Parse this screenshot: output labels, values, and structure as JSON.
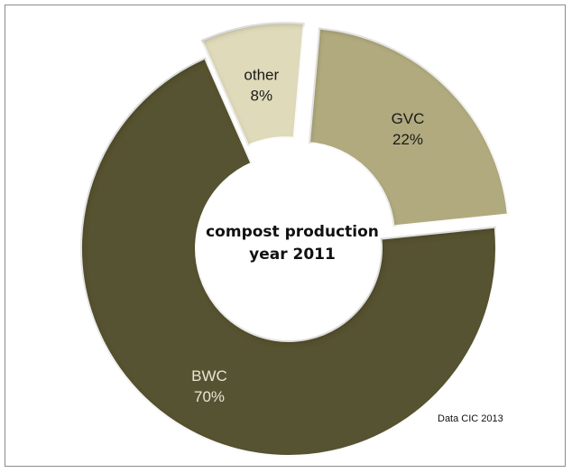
{
  "chart_data": {
    "type": "pie",
    "variant": "exploded-donut",
    "title": "compost production",
    "subtitle": "year 2011",
    "source": "Data CIC 2013",
    "slices": [
      {
        "label": "GVC",
        "value": 22,
        "value_label": "22%",
        "color": "#b1aa7e",
        "label_color": "#1a1a1a"
      },
      {
        "label": "BWC",
        "value": 70,
        "value_label": "70%",
        "color": "#575231",
        "label_color": "#e8e6d8"
      },
      {
        "label": "other",
        "value": 8,
        "value_label": "8%",
        "color": "#dfdab9",
        "label_color": "#1a1a1a"
      }
    ],
    "legend": "none"
  }
}
